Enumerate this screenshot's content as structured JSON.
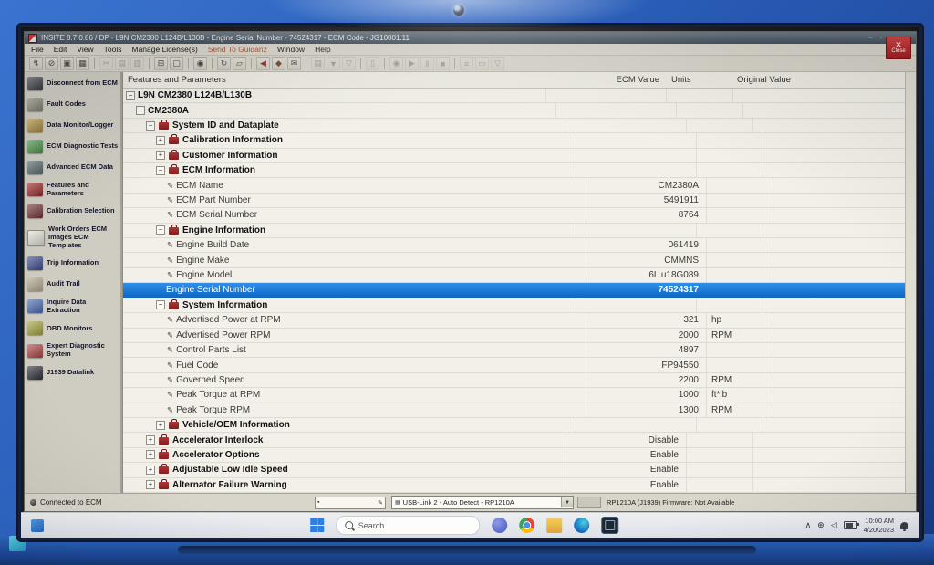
{
  "window": {
    "title": "INSITE 8.7.0.86 / DP - L9N CM2380 L124B/L130B - Engine Serial Number - 74524317 - ECM Code - JG10001.11",
    "close_label": "Close"
  },
  "menu": {
    "items": [
      {
        "label": "File"
      },
      {
        "label": "Edit"
      },
      {
        "label": "View"
      },
      {
        "label": "Tools"
      },
      {
        "label": "Manage License(s)"
      },
      {
        "label": "Send To Guidanz",
        "accent": true
      },
      {
        "label": "Window"
      },
      {
        "label": "Help"
      }
    ]
  },
  "toolbar": {
    "groups": [
      [
        {
          "name": "connect-icon",
          "glyph": "↯"
        },
        {
          "name": "disconnect-icon",
          "glyph": "⊘"
        },
        {
          "name": "ecm-image-icon",
          "glyph": "▣"
        },
        {
          "name": "workspace-icon",
          "glyph": "▦"
        }
      ],
      [
        {
          "name": "cut-icon",
          "glyph": "✂",
          "dim": true
        },
        {
          "name": "copy-icon",
          "glyph": "▤",
          "dim": true
        },
        {
          "name": "paste-icon",
          "glyph": "▥",
          "dim": true
        }
      ],
      [
        {
          "name": "print-icon",
          "glyph": "⊞"
        },
        {
          "name": "print-preview-icon",
          "glyph": "▢"
        }
      ],
      [
        {
          "name": "search-icon",
          "glyph": "◉"
        }
      ],
      [
        {
          "name": "refresh-icon",
          "glyph": "↻"
        },
        {
          "name": "link-icon",
          "glyph": "▱"
        }
      ],
      [
        {
          "name": "back-icon",
          "glyph": "◀",
          "color": "#a03030"
        },
        {
          "name": "package-icon",
          "glyph": "◆",
          "color": "#7a4a2a"
        },
        {
          "name": "mail-icon",
          "glyph": "✉"
        }
      ],
      [
        {
          "name": "export-icon",
          "glyph": "▤",
          "dim": true
        },
        {
          "name": "import-icon",
          "glyph": "▼",
          "dim": true
        },
        {
          "name": "filter-icon",
          "glyph": "▽",
          "dim": true
        }
      ],
      [
        {
          "name": "clipboard-icon",
          "glyph": "▯",
          "dim": true
        }
      ],
      [
        {
          "name": "record-icon",
          "glyph": "◉",
          "dim": true
        },
        {
          "name": "play-icon",
          "glyph": "▶",
          "dim": true
        },
        {
          "name": "pause-icon",
          "glyph": "‖",
          "dim": true
        },
        {
          "name": "stop-icon",
          "glyph": "■",
          "dim": true
        }
      ],
      [
        {
          "name": "log-icon",
          "glyph": "≡",
          "dim": true
        },
        {
          "name": "notes-icon",
          "glyph": "▭",
          "dim": true
        },
        {
          "name": "context-help-icon",
          "glyph": "▽",
          "dim": true
        }
      ]
    ]
  },
  "sidebar": {
    "items": [
      {
        "label": "Disconnect from ECM",
        "color": "#3f3f46"
      },
      {
        "label": "Fault Codes",
        "color": "#8d8d7a"
      },
      {
        "label": "Data Monitor/Logger",
        "color": "#b5953f"
      },
      {
        "label": "ECM Diagnostic Tests",
        "color": "#4e9a4e"
      },
      {
        "label": "Advanced ECM Data",
        "color": "#5d6d70"
      },
      {
        "label": "Features and Parameters",
        "color": "#9e2b2b"
      },
      {
        "label": "Calibration Selection",
        "color": "#76343a"
      },
      {
        "label": "Work Orders ECM Images ECM Templates",
        "color": "#e9e7da",
        "border": true
      },
      {
        "label": "Trip Information",
        "color": "#3d4b8f"
      },
      {
        "label": "Audit Trail",
        "color": "#b3a98e"
      },
      {
        "label": "Inquire Data Extraction",
        "color": "#4a6aae"
      },
      {
        "label": "OBD Monitors",
        "color": "#a3a341"
      },
      {
        "label": "Expert Diagnostic System",
        "color": "#aa4444"
      },
      {
        "label": "J1939 Datalink",
        "color": "#2f2f38"
      }
    ],
    "status": "Connected to ECM"
  },
  "table": {
    "header": {
      "features": "Features and Parameters",
      "ecm_value": "ECM Value",
      "units": "Units",
      "original": "Original Value"
    },
    "rows": [
      {
        "level": 0,
        "expand": "-",
        "label": "L9N CM2380 L124B/L130B",
        "bold": true
      },
      {
        "level": 1,
        "expand": "-",
        "label": "CM2380A",
        "bold": true
      },
      {
        "level": 2,
        "expand": "-",
        "folder": true,
        "label": "System ID and Dataplate",
        "bold": true
      },
      {
        "level": 3,
        "expand": "+",
        "folder": true,
        "label": "Calibration Information",
        "bold": true
      },
      {
        "level": 3,
        "expand": "+",
        "folder": true,
        "label": "Customer Information",
        "bold": true
      },
      {
        "level": 3,
        "expand": "-",
        "folder": true,
        "label": "ECM Information",
        "bold": true
      },
      {
        "level": 4,
        "icon": "pencil",
        "label": "ECM Name",
        "value": "CM2380A"
      },
      {
        "level": 4,
        "icon": "pencil",
        "label": "ECM Part Number",
        "value": "5491911"
      },
      {
        "level": 4,
        "icon": "pencil",
        "label": "ECM Serial Number",
        "value": "8764"
      },
      {
        "level": 3,
        "expand": "-",
        "folder": true,
        "label": "Engine Information",
        "bold": true
      },
      {
        "level": 4,
        "icon": "pencil",
        "label": "Engine Build Date",
        "value": "061419"
      },
      {
        "level": 4,
        "icon": "pencil",
        "label": "Engine Make",
        "value": "CMMNS"
      },
      {
        "level": 4,
        "icon": "pencil",
        "label": "Engine Model",
        "value": "6L u18G089"
      },
      {
        "level": 4,
        "label": "Engine Serial Number",
        "value": "74524317",
        "selected": true
      },
      {
        "level": 3,
        "expand": "-",
        "folder": true,
        "label": "System Information",
        "bold": true
      },
      {
        "level": 4,
        "icon": "pencil",
        "label": "Advertised Power at RPM",
        "value": "321",
        "units": "hp"
      },
      {
        "level": 4,
        "icon": "pencil",
        "label": "Advertised Power RPM",
        "value": "2000",
        "units": "RPM"
      },
      {
        "level": 4,
        "icon": "pencil",
        "label": "Control Parts List",
        "value": "4897"
      },
      {
        "level": 4,
        "icon": "pencil",
        "label": "Fuel Code",
        "value": "FP94550"
      },
      {
        "level": 4,
        "icon": "pencil",
        "label": "Governed Speed",
        "value": "2200",
        "units": "RPM"
      },
      {
        "level": 4,
        "icon": "pencil",
        "label": "Peak Torque at RPM",
        "value": "1000",
        "units": "ft*lb"
      },
      {
        "level": 4,
        "icon": "pencil",
        "label": "Peak Torque RPM",
        "value": "1300",
        "units": "RPM"
      },
      {
        "level": 3,
        "expand": "+",
        "folder": true,
        "label": "Vehicle/OEM Information",
        "bold": true
      },
      {
        "level": 2,
        "expand": "+",
        "folder": true,
        "label": "Accelerator Interlock",
        "bold": true,
        "value": "Disable"
      },
      {
        "level": 2,
        "expand": "+",
        "folder": true,
        "label": "Accelerator Options",
        "bold": true,
        "value": "Enable"
      },
      {
        "level": 2,
        "expand": "+",
        "folder": true,
        "label": "Adjustable Low Idle Speed",
        "bold": true,
        "value": "Enable"
      },
      {
        "level": 2,
        "expand": "+",
        "folder": true,
        "label": "Alternator Failure Warning",
        "bold": true,
        "value": "Enable"
      }
    ]
  },
  "statusbar": {
    "adapter": "USB-Link 2 - Auto Detect - RP1210A",
    "firmware": "RP1210A (J1939)  Firmware: Not Available"
  },
  "taskbar": {
    "search_placeholder": "Search",
    "apps": [
      {
        "name": "taskbar-app-teams",
        "cls": "app-teams"
      },
      {
        "name": "taskbar-app-chrome",
        "cls": "app-chrome"
      },
      {
        "name": "taskbar-app-file-explorer",
        "cls": "app-folder"
      },
      {
        "name": "taskbar-app-edge",
        "cls": "app-edge"
      },
      {
        "name": "taskbar-app-insite",
        "cls": "app-insite"
      }
    ],
    "tray": {
      "time": "10:00 AM",
      "date": "4/20/2023"
    }
  }
}
